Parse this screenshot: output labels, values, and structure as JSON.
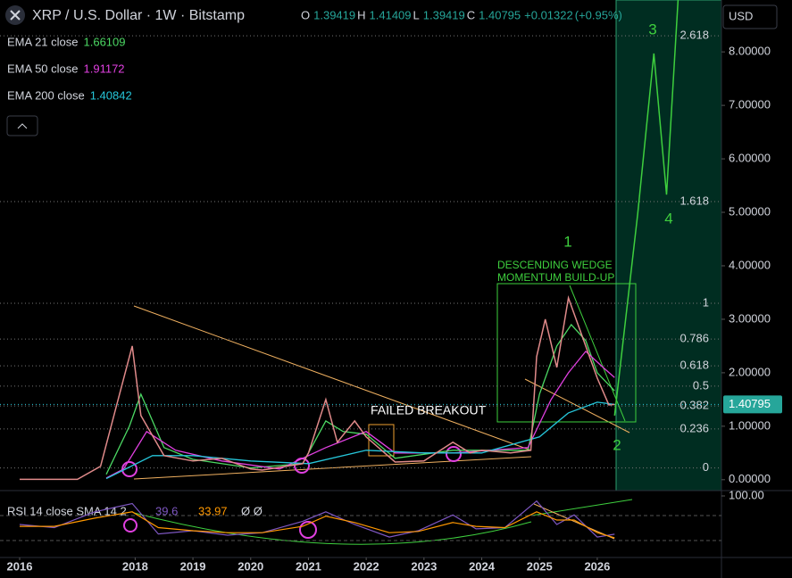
{
  "chart_data": {
    "type": "line",
    "title": "XRP / U.S. Dollar · 1W · Bitstamp",
    "ohlc": [
      {
        "label": "O",
        "value": 1.39419
      },
      {
        "label": "H",
        "value": 1.41409
      },
      {
        "label": "L",
        "value": 1.39419
      },
      {
        "label": "C"
      }
    ],
    "change": {
      "value": 0.01322,
      "label": "+0.01322",
      "percent": 0.95,
      "percent_label": "(+0.95%)"
    },
    "currency": "USD",
    "color": "#e08a8a",
    "x": [
      2016.0,
      2017.0,
      2017.4,
      2017.95,
      2018.1,
      2018.5,
      2019.0,
      2019.5,
      2020.0,
      2020.2,
      2020.9,
      2021.0,
      2021.3,
      2021.5,
      2021.8,
      2022.0,
      2022.5,
      2023.0,
      2023.5,
      2023.8,
      2024.0,
      2024.5,
      2024.85,
      2024.95,
      2025.1,
      2025.3,
      2025.5,
      2025.7,
      2025.9,
      2026.0,
      2026.2,
      2026.3
    ],
    "values": [
      0.006,
      0.007,
      0.25,
      2.5,
      1.2,
      0.45,
      0.35,
      0.4,
      0.2,
      0.18,
      0.3,
      0.5,
      1.5,
      0.7,
      1.1,
      0.8,
      0.33,
      0.35,
      0.7,
      0.5,
      0.55,
      0.5,
      0.55,
      2.3,
      3.0,
      2.1,
      3.4,
      2.8,
      2.2,
      1.9,
      1.4,
      1.40795
    ],
    "series": [
      {
        "name": "EMA 21 close",
        "color": "#4cd964",
        "x": [
          2017.5,
          2017.9,
          2018.1,
          2018.5,
          2019.0,
          2020.0,
          2020.9,
          2021.3,
          2021.6,
          2022.0,
          2022.5,
          2023.5,
          2024.8,
          2025.0,
          2025.3,
          2025.55,
          2025.8,
          2026.0,
          2026.3
        ],
        "values": [
          0.1,
          1.0,
          1.6,
          0.6,
          0.38,
          0.22,
          0.3,
          1.1,
          0.9,
          0.85,
          0.4,
          0.55,
          0.55,
          1.6,
          2.5,
          2.9,
          2.6,
          2.0,
          1.66109
        ]
      },
      {
        "name": "EMA 50 close",
        "color": "#e040e0",
        "x": [
          2017.5,
          2017.8,
          2018.2,
          2018.7,
          2019.5,
          2020.5,
          2021.3,
          2022.0,
          2022.5,
          2023.5,
          2024.8,
          2025.2,
          2025.5,
          2025.8,
          2026.1,
          2026.3
        ],
        "values": [
          0.03,
          0.2,
          0.9,
          0.55,
          0.35,
          0.2,
          0.6,
          0.9,
          0.5,
          0.5,
          0.6,
          1.5,
          2.0,
          2.4,
          2.1,
          1.91172
        ]
      },
      {
        "name": "EMA 200 close",
        "color": "#26c6da",
        "x": [
          2017.5,
          2018.3,
          2019.0,
          2020.0,
          2021.0,
          2022.0,
          2023.0,
          2024.0,
          2025.0,
          2025.5,
          2026.0,
          2026.3
        ],
        "values": [
          0.02,
          0.45,
          0.45,
          0.35,
          0.3,
          0.55,
          0.5,
          0.5,
          0.8,
          1.25,
          1.45,
          1.40842
        ]
      }
    ],
    "projection": {
      "color": "#3ecf3e",
      "x": [
        2026.3,
        2026.7,
        2026.98,
        2027.2,
        2027.4
      ],
      "values": [
        1.2,
        4.97,
        7.97,
        5.33,
        9.0
      ]
    },
    "fib": [
      {
        "ratio": 0,
        "price": 0.22
      },
      {
        "ratio": 0.236,
        "price": 0.95
      },
      {
        "ratio": 0.382,
        "price": 1.38
      },
      {
        "ratio": 0.5,
        "price": 1.75
      },
      {
        "ratio": 0.618,
        "price": 2.13
      },
      {
        "ratio": 0.786,
        "price": 2.63
      },
      {
        "ratio": 1,
        "price": 3.3
      },
      {
        "ratio": 1.618,
        "price": 5.2
      },
      {
        "ratio": 2.618,
        "price": 8.3
      }
    ],
    "annotations": {
      "wave1": "1",
      "wave2": "2",
      "wave3": "3",
      "wave4": "4",
      "wedge1": "DESCENDING WEDGE",
      "wedge2": "MOMENTUM BUILD-UP",
      "failed": "FAILED BREAKOUT"
    },
    "xlim": [
      2015.66,
      2028.15
    ],
    "xticks": [
      2016,
      2018,
      2019,
      2020,
      2021,
      2022,
      2023,
      2024,
      2025,
      2026
    ],
    "ylim": [
      -0.17,
      8.97
    ],
    "yticks": [
      {
        "value": 0,
        "label": "0.00000"
      },
      {
        "value": 1,
        "label": "1.00000"
      },
      {
        "value": 2,
        "label": "2.00000"
      },
      {
        "value": 3,
        "label": "3.00000"
      },
      {
        "value": 4,
        "label": "4.00000"
      },
      {
        "value": 5,
        "label": "5.00000"
      },
      {
        "value": 6,
        "label": "6.00000"
      },
      {
        "value": 7,
        "label": "7.00000"
      },
      {
        "value": 8,
        "label": "8.00000"
      }
    ],
    "rsi": {
      "title": "RSI 14 close SMA 14 2",
      "extra": "Ø Ø",
      "color": "#7e57c2",
      "sma_color": "#ff9800",
      "x": [
        2016.0,
        2016.6,
        2017.3,
        2017.95,
        2018.4,
        2019.0,
        2019.6,
        2020.2,
        2020.9,
        2021.3,
        2021.8,
        2022.4,
        2022.9,
        2023.5,
        2023.9,
        2024.4,
        2024.95,
        2025.3,
        2025.6,
        2026.0,
        2026.3
      ],
      "values": [
        55,
        50,
        75,
        88,
        40,
        45,
        38,
        42,
        60,
        75,
        55,
        35,
        45,
        70,
        48,
        50,
        92,
        55,
        70,
        35,
        39.6
      ],
      "sma": [
        52,
        52,
        65,
        75,
        50,
        45,
        42,
        42,
        52,
        68,
        58,
        42,
        44,
        58,
        52,
        50,
        75,
        62,
        62,
        42,
        33.97
      ],
      "ylim": [
        0,
        100
      ],
      "yticks": [
        {
          "value": 100,
          "label": "100.00"
        }
      ]
    }
  }
}
